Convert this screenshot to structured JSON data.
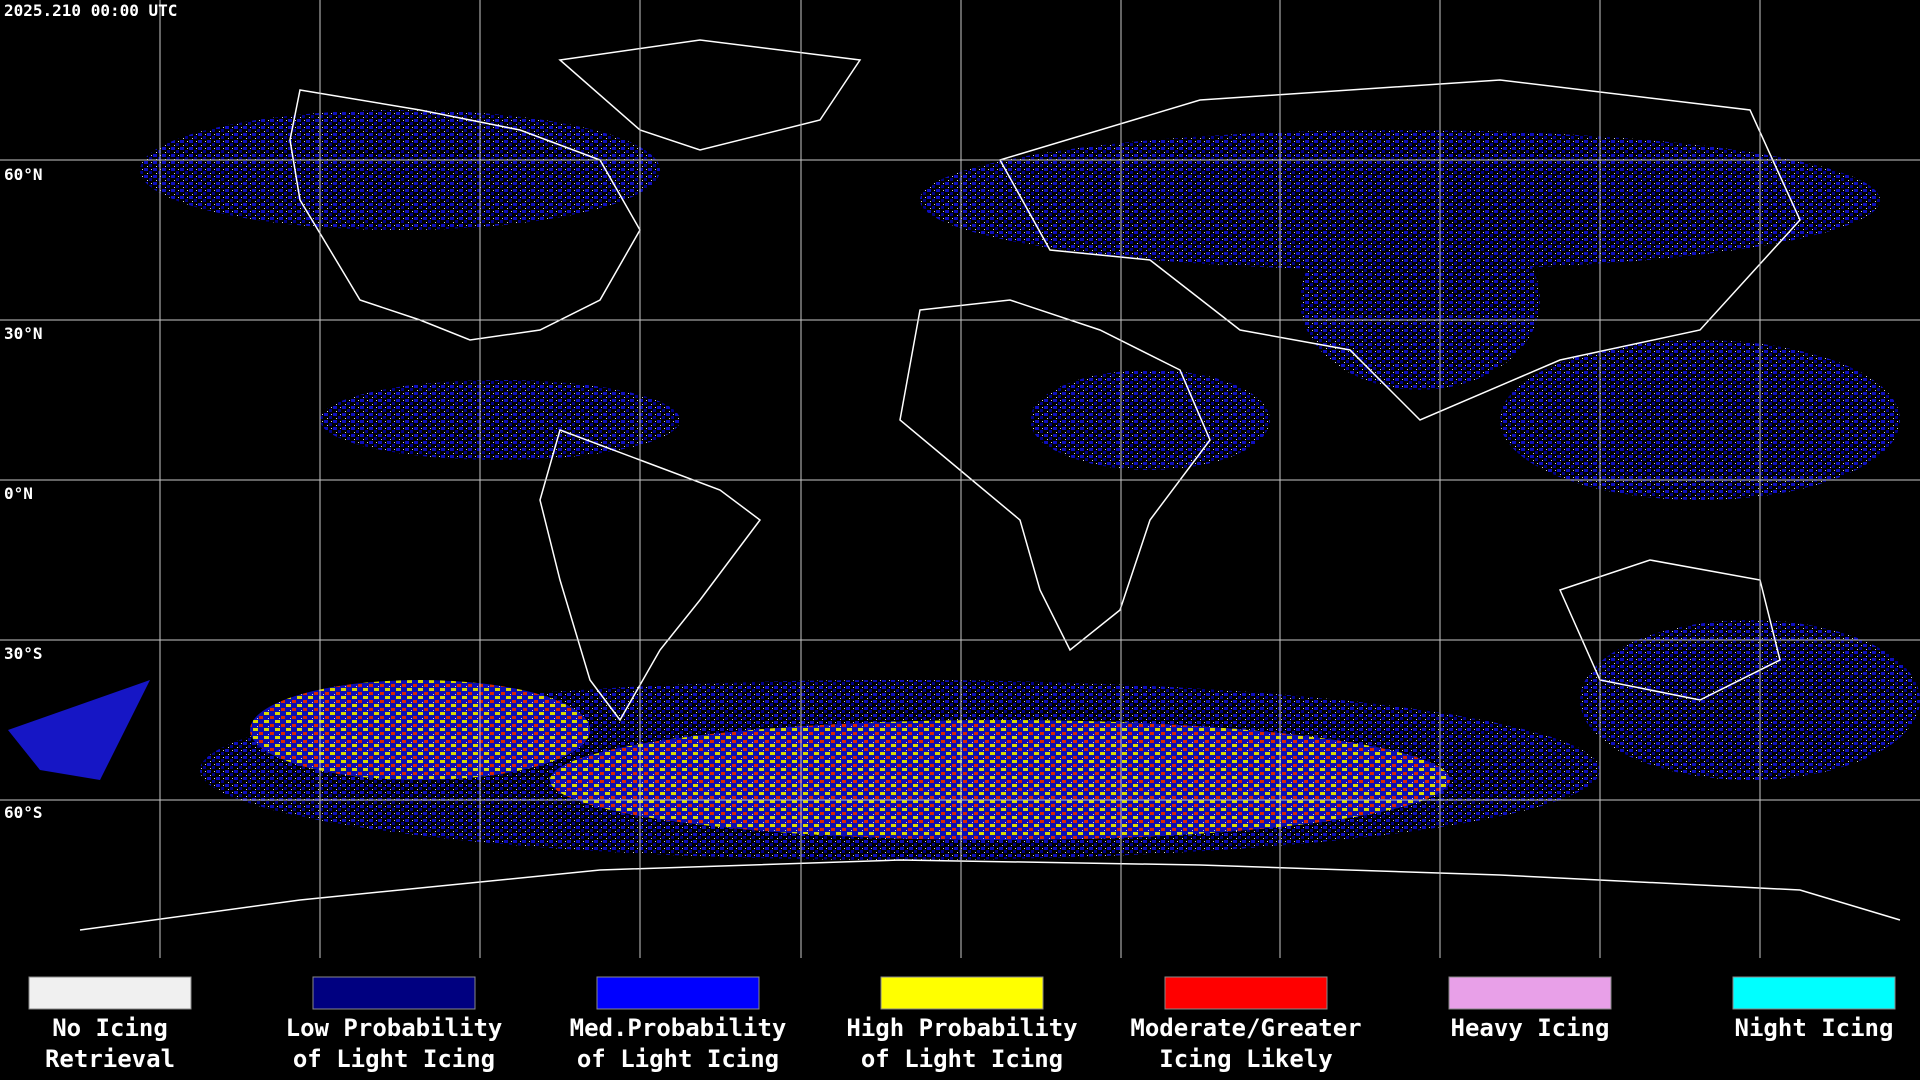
{
  "header": {
    "timestamp": "2025.210 00:00 UTC"
  },
  "map": {
    "latitude_labels": [
      "60°N",
      "30°N",
      "0°N",
      "30°S",
      "60°S"
    ]
  },
  "legend": [
    {
      "lines": [
        "No Icing",
        "Retrieval"
      ],
      "color": "#f0f0f0"
    },
    {
      "lines": [
        "Low Probability",
        "of Light Icing"
      ],
      "color": "#000080"
    },
    {
      "lines": [
        "Med.Probability",
        "of Light Icing"
      ],
      "color": "#0000ff"
    },
    {
      "lines": [
        "High Probability",
        "of Light Icing"
      ],
      "color": "#ffff00"
    },
    {
      "lines": [
        "Moderate/Greater",
        "Icing Likely"
      ],
      "color": "#ff0000"
    },
    {
      "lines": [
        "Heavy Icing"
      ],
      "color": "#e8a0e8"
    },
    {
      "lines": [
        "Night Icing"
      ],
      "color": "#00ffff"
    }
  ]
}
